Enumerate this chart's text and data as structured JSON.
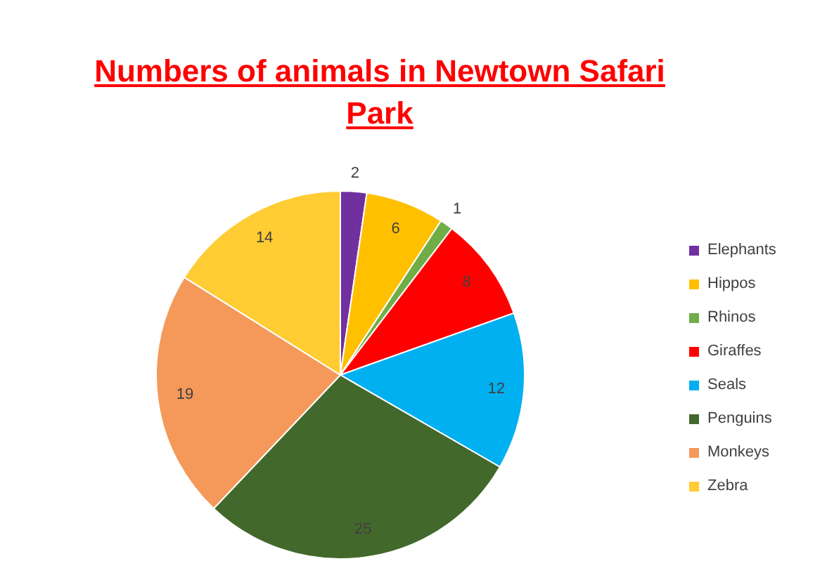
{
  "chart_data": {
    "type": "pie",
    "title": "Numbers of animals in Newtown Safari Park",
    "categories": [
      "Elephants",
      "Hippos",
      "Rhinos",
      "Giraffes",
      "Seals",
      "Penguins",
      "Monkeys",
      "Zebra"
    ],
    "values": [
      2,
      6,
      1,
      8,
      12,
      25,
      19,
      14
    ],
    "colors": [
      "#7030a0",
      "#ffc000",
      "#70ad47",
      "#ff0000",
      "#00b0f0",
      "#43682b",
      "#f4995a",
      "#ffcc33"
    ],
    "data_labels": true,
    "legend": "right"
  }
}
